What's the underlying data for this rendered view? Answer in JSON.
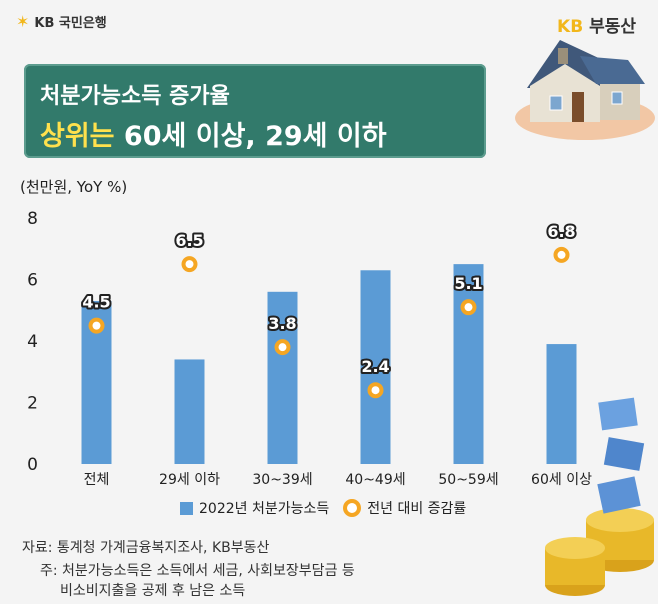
{
  "brand": {
    "bank_name": "KB 국민은행",
    "site_name_kb": "KB",
    "site_name_rest": " 부동산"
  },
  "title": {
    "line1": "처분가능소득 증가율",
    "line2_highlight": "상위는",
    "line2_rest": " 60세 이상, 29세 이하"
  },
  "unit_label": "(천만원, YoY %)",
  "legend": {
    "bar": "2022년 처분가능소득",
    "dot": "전년 대비 증감률"
  },
  "footer": {
    "source": "자료: 통계청 가계금융복지조사, KB부동산",
    "note_line1": "주: 처분가능소득은 소득에서 세금, 사회보장부담금 등",
    "note_line2": "비소비지출을 공제 후 남은 소득"
  },
  "colors": {
    "bar": "#5b9bd5",
    "dot": "#f5a623",
    "title_bg": "#327a6b",
    "highlight": "#ffe14d",
    "brand": "#f2b71b"
  },
  "chart_data": {
    "type": "bar",
    "categories": [
      "전체",
      "29세 이하",
      "30~39세",
      "40~49세",
      "50~59세",
      "60세 이상"
    ],
    "series": [
      {
        "name": "2022년 처분가능소득",
        "type": "bar",
        "values": [
          5.3,
          3.4,
          5.6,
          6.3,
          6.5,
          3.9
        ]
      },
      {
        "name": "전년 대비 증감률",
        "type": "dot",
        "values": [
          4.5,
          6.5,
          3.8,
          2.4,
          5.1,
          6.8
        ]
      }
    ],
    "ylim": [
      0,
      8
    ],
    "yticks": [
      0,
      2,
      4,
      6,
      8
    ],
    "dot_labels": [
      "4.5",
      "6.5",
      "3.8",
      "2.4",
      "5.1",
      "6.8"
    ],
    "grid": false,
    "legend_position": "bottom"
  }
}
